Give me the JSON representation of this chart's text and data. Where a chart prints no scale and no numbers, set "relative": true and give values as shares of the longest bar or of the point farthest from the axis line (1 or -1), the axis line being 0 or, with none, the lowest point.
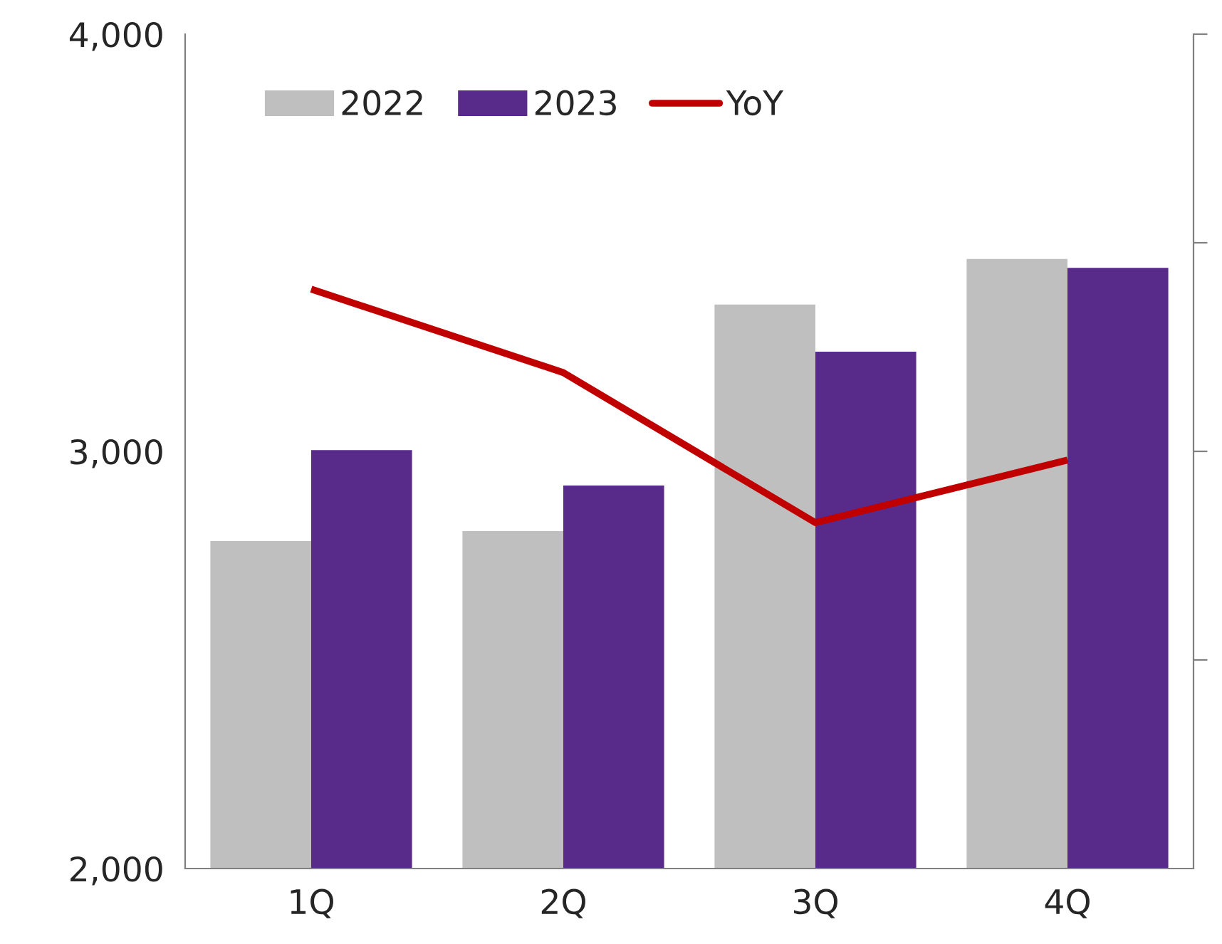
{
  "chart_data": [
    {
      "type": "bar",
      "categories": [
        "1Q",
        "2Q",
        "3Q",
        "4Q"
      ],
      "series": [
        {
          "name": "2022",
          "color": "#bfbfbf",
          "values": [
            2785,
            2809,
            3352,
            3461
          ]
        },
        {
          "name": "2023",
          "color": "#582a8a",
          "values": [
            3003,
            2918,
            3239,
            3440
          ]
        }
      ],
      "ylim": [
        2000,
        4000
      ],
      "yticks": [
        {
          "value": 2000,
          "label": "2,000"
        },
        {
          "value": 3000,
          "label": "3,000"
        },
        {
          "value": 4000,
          "label": "4,000"
        }
      ],
      "legend": "top left",
      "grid": false
    },
    {
      "type": "line",
      "categories": [
        null,
        null,
        null,
        null
      ],
      "relative": true,
      "series": [
        {
          "name": "YoY",
          "color": "#c00000",
          "values": [
            1,
            0.856,
            0.597,
            0.705
          ]
        }
      ],
      "legend": "top left",
      "grid": false,
      "marker": "none",
      "line_style": "solid"
    }
  ]
}
